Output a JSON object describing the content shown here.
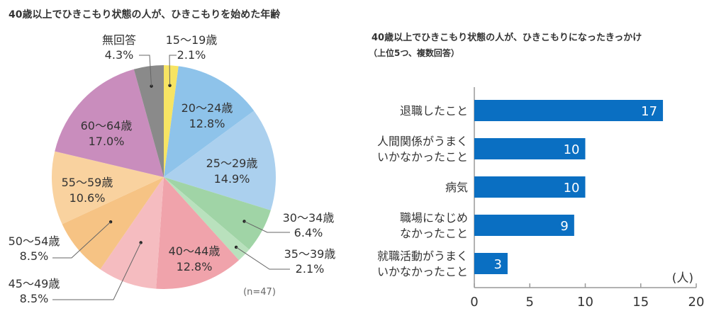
{
  "chart_data": [
    {
      "type": "pie",
      "title": "40歳以上でひきこもり状態の人が、ひきこもりを始めた年齢",
      "note": "(n=47)",
      "unit": "%",
      "start": "top",
      "direction": "clockwise",
      "slices": [
        {
          "label": "15〜19歳",
          "value": 2.1,
          "color": "#f7e463"
        },
        {
          "label": "20〜24歳",
          "value": 12.8,
          "color": "#8ec3ea"
        },
        {
          "label": "25〜29歳",
          "value": 14.9,
          "color": "#abd0ee"
        },
        {
          "label": "30〜34歳",
          "value": 6.4,
          "color": "#a0d4a6"
        },
        {
          "label": "35〜39歳",
          "value": 2.1,
          "color": "#b9e1bd"
        },
        {
          "label": "40〜44歳",
          "value": 12.8,
          "color": "#f0a3ab"
        },
        {
          "label": "45〜49歳",
          "value": 8.5,
          "color": "#f5bcc0"
        },
        {
          "label": "50〜54歳",
          "value": 8.5,
          "color": "#f6c384"
        },
        {
          "label": "55〜59歳",
          "value": 10.6,
          "color": "#f9d29f"
        },
        {
          "label": "60〜64歳",
          "value": 17.0,
          "color": "#c98dbd"
        },
        {
          "label": "無回答",
          "value": 4.3,
          "color": "#8a8a8a"
        }
      ]
    },
    {
      "type": "bar",
      "orientation": "horizontal",
      "title": "40歳以上でひきこもり状態の人が、ひきこもりになったきっかけ",
      "subtitle": "（上位5つ、複数回答）",
      "xlabel": "(人)",
      "xlim": [
        0,
        20
      ],
      "xticks": [
        "0",
        "5",
        "10",
        "15",
        "20"
      ],
      "grid": false,
      "bar_color": "#0a6fc2",
      "categories": [
        [
          "退職したこと"
        ],
        [
          "人間関係がうまく",
          "いかなかったこと"
        ],
        [
          "病気"
        ],
        [
          "職場になじめ",
          "なかったこと"
        ],
        [
          "就職活動がうまく",
          "いかなかったこと"
        ]
      ],
      "values": [
        17,
        10,
        10,
        9,
        3
      ]
    }
  ]
}
